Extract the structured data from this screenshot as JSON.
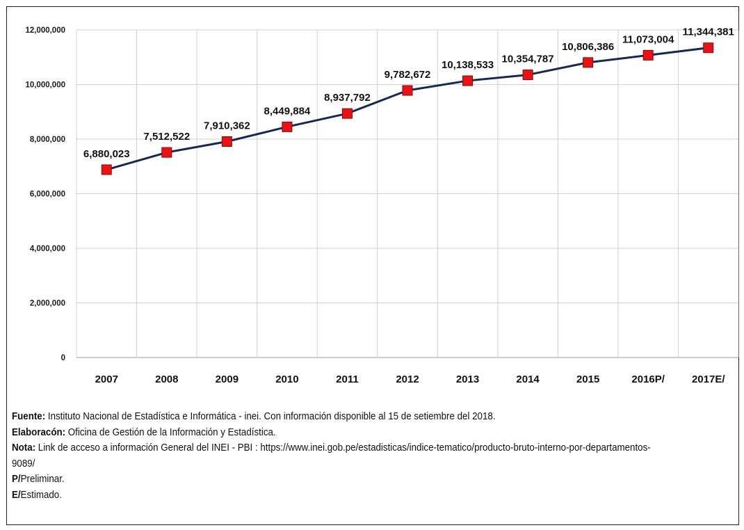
{
  "chart_data": {
    "type": "line",
    "title": "",
    "xlabel": "",
    "ylabel": "",
    "categories": [
      "2007",
      "2008",
      "2009",
      "2010",
      "2011",
      "2012",
      "2013",
      "2014",
      "2015",
      "2016P/",
      "2017E/"
    ],
    "series": [
      {
        "values": [
          6880023,
          7512522,
          7910362,
          8449884,
          8937792,
          9782672,
          10138533,
          10354787,
          10806386,
          11073004,
          11344381
        ],
        "data_labels": [
          "6,880,023",
          "7,512,522",
          "7,910,362",
          "8,449,884",
          "8,937,792",
          "9,782,672",
          "10,138,533",
          "10,354,787",
          "10,806,386",
          "11,073,004",
          "11,344,381"
        ],
        "line_color": "#14285a",
        "marker_color": "#ee1111",
        "marker": "square"
      }
    ],
    "ylim": [
      0,
      12000000
    ],
    "yticks": [
      0,
      2000000,
      4000000,
      6000000,
      8000000,
      10000000,
      12000000
    ],
    "ytick_labels": [
      "0",
      "2,000,000",
      "4,000,000",
      "6,000,000",
      "8,000,000",
      "10,000,000",
      "12,000,000"
    ],
    "grid": true,
    "legend": "none"
  },
  "notes": {
    "fuente_label": "Fuente:",
    "fuente_text": " Instituto Nacional de Estadística e Informática - inei. Con información disponible al 15 de setiembre del 2018.",
    "elaboracion_label": "Elaboracón:",
    "elaboracion_text": " Oficina de Gestión de la Información y Estadística.",
    "nota_label": "Nota:",
    "nota_text": " Link de acceso a información General del INEI - PBI : https://www.inei.gob.pe/estadisticas/indice-tematico/producto-bruto-interno-por-departamentos-9089/",
    "p_label": "P/",
    "p_text": "Preliminar.",
    "e_label": "E/",
    "e_text": "Estimado."
  }
}
